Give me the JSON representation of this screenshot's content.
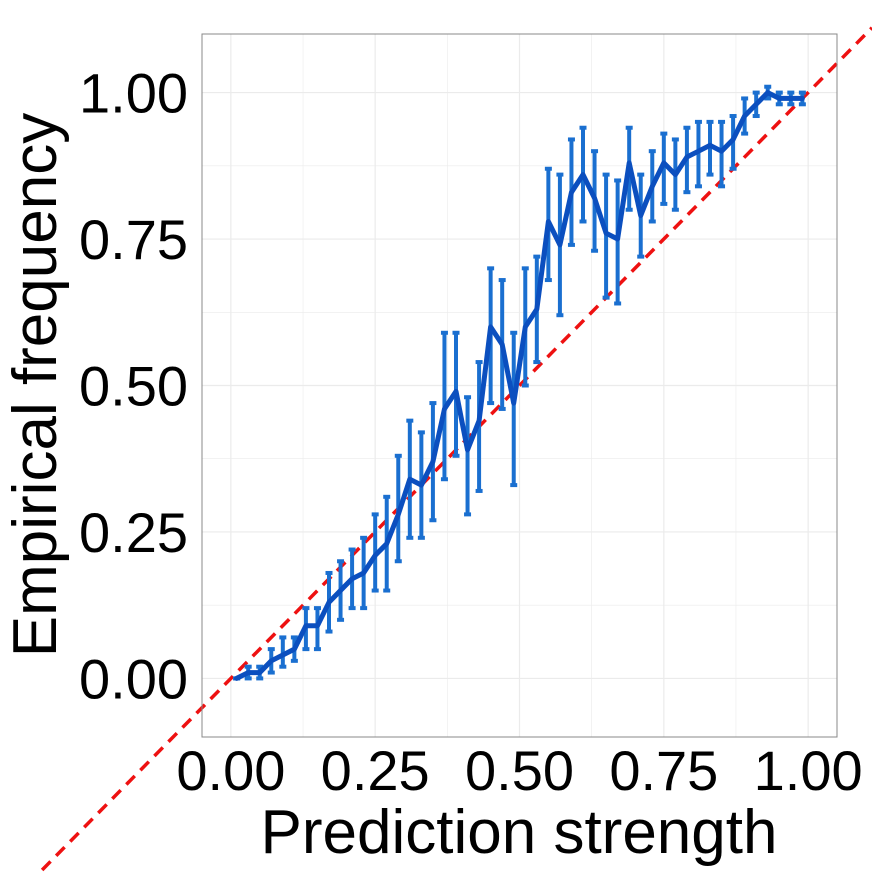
{
  "chart_data": {
    "type": "line",
    "title": "",
    "xlabel": "Prediction strength",
    "ylabel": "Empirical frequency",
    "xlim": [
      -0.05,
      1.05
    ],
    "ylim": [
      -0.1,
      1.1
    ],
    "x_ticks": [
      0.0,
      0.25,
      0.5,
      0.75,
      1.0
    ],
    "x_tick_labels": [
      "0.00",
      "0.25",
      "0.50",
      "0.75",
      "1.00"
    ],
    "y_ticks": [
      0.0,
      0.25,
      0.5,
      0.75,
      1.0
    ],
    "y_tick_labels": [
      "0.00",
      "0.25",
      "0.50",
      "0.75",
      "1.00"
    ],
    "grid": true,
    "legend": "none",
    "colors": {
      "series": "#0b4fbf",
      "error_bars": "#1a6fd0",
      "reference": "#ee1111",
      "grid": "#ebebeb",
      "panel_border": "#888888"
    },
    "reference_line": {
      "from": [
        -0.05,
        -0.05
      ],
      "to": [
        1.05,
        1.05
      ],
      "style": "dashed"
    },
    "series": [
      {
        "x": [
          0.01,
          0.03,
          0.05,
          0.07,
          0.09,
          0.11,
          0.13,
          0.15,
          0.17,
          0.19,
          0.21,
          0.23,
          0.25,
          0.27,
          0.29,
          0.31,
          0.33,
          0.35,
          0.37,
          0.39,
          0.41,
          0.43,
          0.45,
          0.47,
          0.49,
          0.51,
          0.53,
          0.55,
          0.57,
          0.59,
          0.61,
          0.63,
          0.65,
          0.67,
          0.69,
          0.71,
          0.73,
          0.75,
          0.77,
          0.79,
          0.81,
          0.83,
          0.85,
          0.87,
          0.89,
          0.91,
          0.93,
          0.95,
          0.97,
          0.99
        ],
        "y": [
          0.0,
          0.01,
          0.01,
          0.03,
          0.04,
          0.05,
          0.09,
          0.09,
          0.13,
          0.15,
          0.17,
          0.18,
          0.21,
          0.23,
          0.28,
          0.34,
          0.33,
          0.37,
          0.46,
          0.49,
          0.39,
          0.44,
          0.6,
          0.57,
          0.47,
          0.6,
          0.63,
          0.78,
          0.74,
          0.83,
          0.86,
          0.82,
          0.76,
          0.75,
          0.88,
          0.79,
          0.84,
          0.88,
          0.86,
          0.89,
          0.9,
          0.91,
          0.9,
          0.92,
          0.96,
          0.98,
          1.0,
          0.99,
          0.99,
          0.99
        ],
        "lower": [
          0.0,
          0.0,
          0.0,
          0.01,
          0.02,
          0.03,
          0.05,
          0.05,
          0.08,
          0.1,
          0.12,
          0.12,
          0.15,
          0.15,
          0.2,
          0.24,
          0.24,
          0.27,
          0.34,
          0.38,
          0.28,
          0.32,
          0.47,
          0.46,
          0.33,
          0.5,
          0.54,
          0.68,
          0.62,
          0.74,
          0.78,
          0.73,
          0.65,
          0.64,
          0.8,
          0.72,
          0.78,
          0.81,
          0.8,
          0.83,
          0.84,
          0.86,
          0.84,
          0.87,
          0.93,
          0.96,
          0.99,
          0.98,
          0.98,
          0.98
        ],
        "upper": [
          0.0,
          0.02,
          0.02,
          0.05,
          0.07,
          0.07,
          0.12,
          0.12,
          0.18,
          0.2,
          0.22,
          0.24,
          0.28,
          0.31,
          0.38,
          0.44,
          0.42,
          0.47,
          0.59,
          0.59,
          0.48,
          0.54,
          0.7,
          0.68,
          0.59,
          0.7,
          0.72,
          0.87,
          0.86,
          0.92,
          0.94,
          0.9,
          0.86,
          0.85,
          0.94,
          0.86,
          0.9,
          0.93,
          0.92,
          0.94,
          0.95,
          0.95,
          0.95,
          0.96,
          0.99,
          1.0,
          1.01,
          1.0,
          1.0,
          1.0
        ]
      }
    ]
  }
}
